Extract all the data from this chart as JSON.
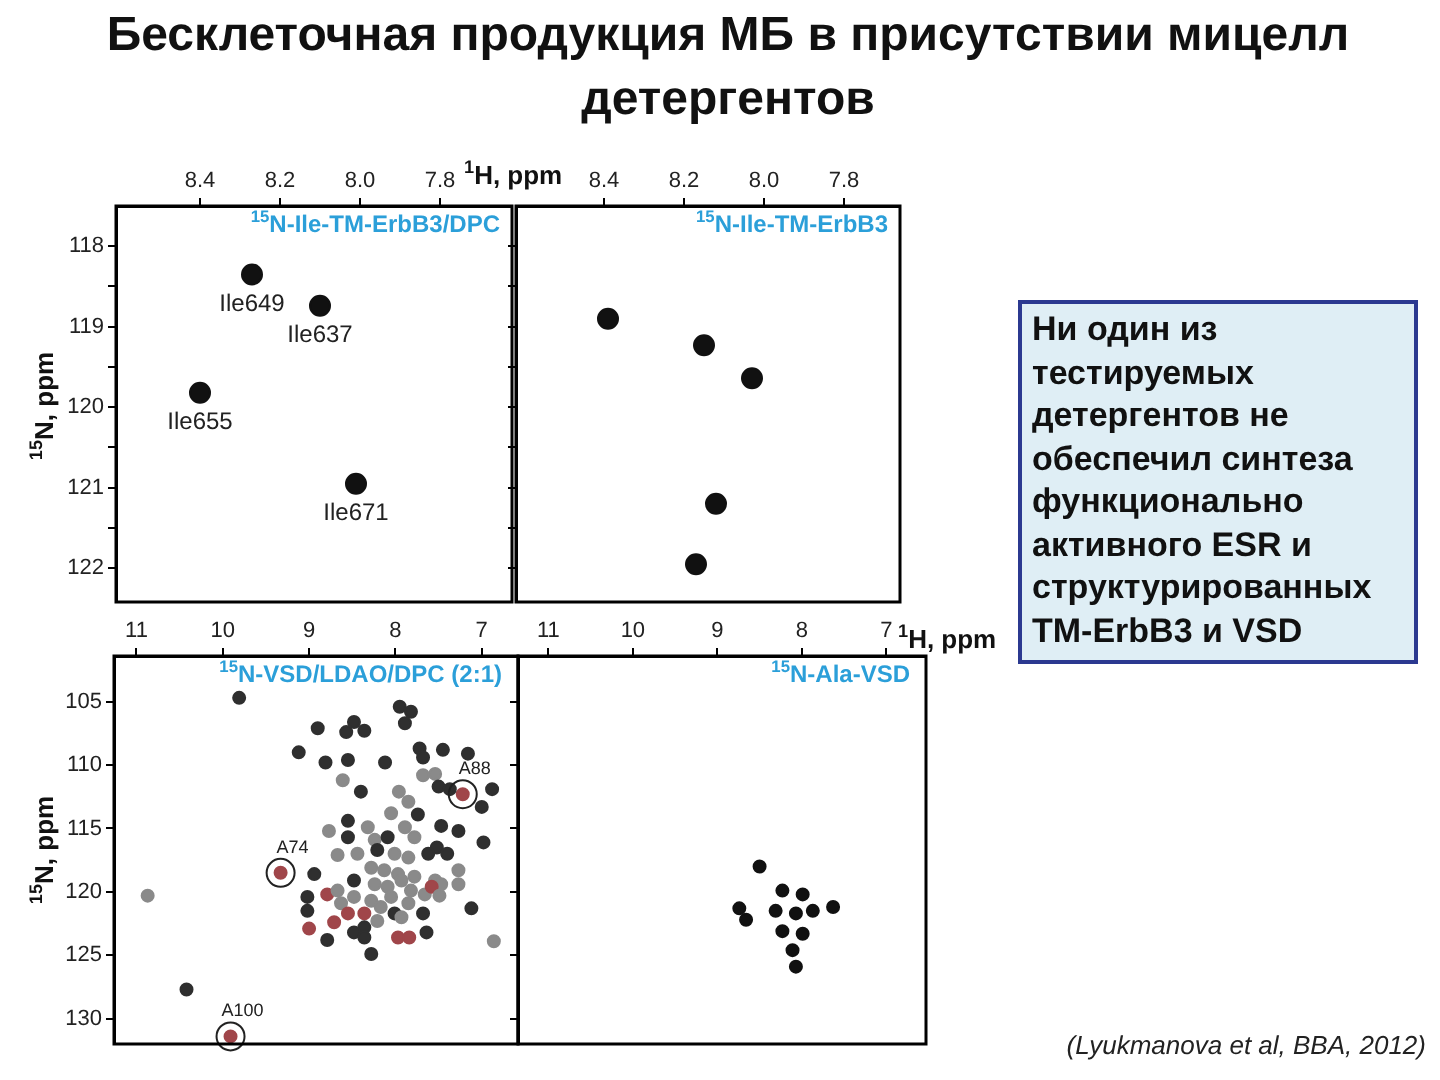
{
  "chart_data": [
    {
      "type": "other",
      "title": "Бесклеточная продукция МБ в присутствии мицелл детергентов"
    },
    {
      "type": "scatter",
      "title": "$^{15}$N-Ile-TM-ErbB3/DPC",
      "xlabel": "$^{1}$H, ppm",
      "ylabel": "$^{15}$N, ppm",
      "x": [
        8.27,
        8.1,
        8.4,
        8.01
      ],
      "values": [
        118.35,
        118.74,
        119.82,
        120.95
      ],
      "color": "#111111",
      "marker": "circle",
      "xlim": [
        8.61,
        7.62
      ],
      "xticks": [
        8.4,
        8.2,
        {
          "value": 8,
          "label": "8.0"
        },
        7.8
      ],
      "ylim": [
        122.42,
        117.5
      ],
      "yticks": [
        118,
        {
          "value": 118.5,
          "label": null
        },
        119,
        {
          "value": 119.5,
          "label": null
        },
        120,
        {
          "value": 120.5,
          "label": null
        },
        121,
        {
          "value": 121.5,
          "label": null
        },
        122
      ],
      "annotations": [
        {
          "text": "Ile649",
          "x": 8.27,
          "y": 118.35
        },
        {
          "text": "Ile637",
          "x": 8.1,
          "y": 118.74
        },
        {
          "text": "Ile655",
          "x": 8.4,
          "y": 119.82
        },
        {
          "text": "Ile671",
          "x": 8.01,
          "y": 120.95
        }
      ]
    },
    {
      "type": "scatter",
      "title": "$^{15}$N-Ile-TM-ErbB3",
      "x": [
        8.39,
        8.15,
        8.03,
        8.12,
        8.17
      ],
      "values": [
        118.9,
        119.23,
        119.64,
        121.2,
        121.95
      ],
      "color": "#111111",
      "marker": "circle",
      "xlim": [
        8.62,
        7.66
      ],
      "xticks": [
        8.4,
        8.2,
        {
          "value": 8,
          "label": "8.0"
        },
        7.8
      ],
      "ylim": [
        122.42,
        117.5
      ],
      "yticks": [
        118,
        {
          "value": 118.5,
          "label": null
        },
        119,
        {
          "value": 119.5,
          "label": null
        },
        120,
        {
          "value": 120.5,
          "label": null
        },
        121,
        {
          "value": 121.5,
          "label": null
        },
        122
      ],
      "tick_labels": "x"
    },
    {
      "type": "scatter",
      "title": "$^{15}$N-VSD/LDAO/DPC (2:1)",
      "ylabel": "$^{15}$N, ppm",
      "marker": "circle",
      "xlim": [
        11.26,
        6.58
      ],
      "xticks": [
        11,
        10,
        9,
        8,
        7
      ],
      "ylim": [
        132,
        101.4
      ],
      "yticks": [
        105,
        110,
        115,
        120,
        125,
        130
      ],
      "x": [
        10.87,
        9.81,
        10.42,
        9.91,
        9.33,
        7.22,
        8.9,
        8.57,
        8.48,
        7.95,
        7.82,
        7.89,
        8.36,
        9.12,
        8.81,
        8.55,
        8.12,
        7.72,
        7.68,
        7.45,
        7.16,
        7.54,
        7.68,
        7.5,
        7.37,
        6.88,
        7.0,
        8.61,
        8.4,
        7.96,
        7.85,
        8.05,
        7.74,
        7.89,
        8.77,
        8.55,
        8.32,
        7.47,
        7.27,
        8.55,
        8.24,
        8.09,
        7.78,
        7.52,
        6.98,
        8.67,
        8.44,
        8.21,
        8.01,
        7.85,
        7.62,
        7.4,
        8.94,
        8.28,
        8.13,
        7.97,
        7.78,
        7.54,
        7.27,
        8.48,
        8.24,
        8.09,
        7.93,
        7.82,
        7.66,
        7.47,
        7.27,
        9.02,
        8.79,
        8.67,
        8.48,
        8.28,
        8.05,
        7.85,
        7.58,
        9.02,
        8.63,
        8.55,
        8.36,
        8.17,
        8.01,
        7.68,
        7.12,
        7.49,
        8.71,
        8.36,
        8.21,
        7.93,
        9.0,
        8.79,
        8.48,
        8.36,
        7.97,
        7.84,
        7.64,
        8.28,
        6.86
      ],
      "values": [
        120.3,
        104.7,
        127.7,
        131.4,
        118.5,
        112.3,
        107.1,
        107.4,
        106.6,
        105.4,
        105.8,
        106.7,
        107.3,
        109.0,
        109.8,
        109.6,
        109.8,
        108.7,
        109.4,
        108.8,
        109.1,
        110.7,
        110.8,
        111.7,
        111.9,
        111.9,
        113.3,
        111.2,
        112.1,
        112.1,
        112.9,
        113.8,
        113.9,
        114.9,
        115.2,
        114.4,
        114.9,
        114.8,
        115.2,
        115.7,
        115.9,
        115.7,
        115.7,
        116.5,
        116.1,
        117.1,
        117.0,
        116.7,
        117.0,
        117.3,
        117.0,
        117.0,
        118.6,
        118.1,
        118.3,
        118.6,
        118.8,
        119.1,
        118.3,
        119.1,
        119.4,
        119.6,
        119.1,
        119.9,
        120.2,
        119.4,
        119.4,
        120.4,
        120.2,
        119.9,
        120.4,
        120.7,
        120.4,
        120.9,
        119.6,
        121.5,
        120.9,
        121.7,
        121.7,
        121.2,
        121.7,
        121.7,
        121.3,
        120.3,
        122.4,
        122.8,
        122.3,
        122.0,
        122.9,
        123.8,
        123.2,
        123.6,
        123.6,
        123.6,
        123.2,
        124.9,
        123.9
      ],
      "colors": [
        "#8a8a8a",
        "#2f2f2f",
        "#2f2f2f",
        "#a0464a",
        "#a0464a",
        "#a0464a",
        "#2f2f2f",
        "#2f2f2f",
        "#2f2f2f",
        "#2f2f2f",
        "#2f2f2f",
        "#2f2f2f",
        "#2f2f2f",
        "#2f2f2f",
        "#2f2f2f",
        "#2f2f2f",
        "#2f2f2f",
        "#2f2f2f",
        "#2f2f2f",
        "#2f2f2f",
        "#2f2f2f",
        "#8a8a8a",
        "#8a8a8a",
        "#2f2f2f",
        "#2f2f2f",
        "#2f2f2f",
        "#2f2f2f",
        "#8a8a8a",
        "#2f2f2f",
        "#8a8a8a",
        "#8a8a8a",
        "#8a8a8a",
        "#2f2f2f",
        "#8a8a8a",
        "#8a8a8a",
        "#2f2f2f",
        "#8a8a8a",
        "#2f2f2f",
        "#2f2f2f",
        "#2f2f2f",
        "#8a8a8a",
        "#2f2f2f",
        "#8a8a8a",
        "#2f2f2f",
        "#2f2f2f",
        "#8a8a8a",
        "#8a8a8a",
        "#2f2f2f",
        "#8a8a8a",
        "#8a8a8a",
        "#2f2f2f",
        "#2f2f2f",
        "#2f2f2f",
        "#8a8a8a",
        "#8a8a8a",
        "#8a8a8a",
        "#8a8a8a",
        "#8a8a8a",
        "#8a8a8a",
        "#2f2f2f",
        "#8a8a8a",
        "#8a8a8a",
        "#8a8a8a",
        "#8a8a8a",
        "#8a8a8a",
        "#8a8a8a",
        "#8a8a8a",
        "#2f2f2f",
        "#a0464a",
        "#8a8a8a",
        "#8a8a8a",
        "#8a8a8a",
        "#8a8a8a",
        "#8a8a8a",
        "#a0464a",
        "#2f2f2f",
        "#8a8a8a",
        "#a0464a",
        "#a0464a",
        "#8a8a8a",
        "#2f2f2f",
        "#2f2f2f",
        "#2f2f2f",
        "#8a8a8a",
        "#a0464a",
        "#2f2f2f",
        "#8a8a8a",
        "#8a8a8a",
        "#a0464a",
        "#2f2f2f",
        "#2f2f2f",
        "#2f2f2f",
        "#a0464a",
        "#a0464a",
        "#2f2f2f",
        "#2f2f2f",
        "#8a8a8a"
      ],
      "annotations": [
        {
          "text": "A88",
          "x": 7.22,
          "y": 112.3
        },
        {
          "text": "A74",
          "x": 9.33,
          "y": 118.5
        },
        {
          "text": "A100",
          "x": 9.91,
          "y": 131.4
        }
      ]
    },
    {
      "type": "scatter",
      "title": "$^{15}$N-Ala-VSD",
      "xlabel": "$^{1}$H, ppm",
      "x": [
        8.5,
        8.23,
        7.99,
        8.31,
        8.07,
        7.87,
        8.23,
        7.99,
        8.11,
        8.66,
        8.74,
        7.63,
        8.07
      ],
      "values": [
        118,
        119.9,
        120.2,
        121.5,
        121.7,
        121.5,
        123.1,
        123.3,
        124.6,
        122.2,
        121.3,
        121.2,
        125.9
      ],
      "color": "#111111",
      "marker": "circle",
      "xlim": [
        11.36,
        6.53
      ],
      "xticks": [
        11,
        10,
        9,
        8,
        7
      ],
      "ylim": [
        132,
        101.4
      ],
      "yticks": [
        105,
        110,
        115,
        120,
        125,
        130
      ],
      "tick_labels": "x"
    },
    {
      "type": "other",
      "annotations": [
        "Ни один из тестируемых детергентов не обеспечил синтеза функционально активного ESR и структурированных TM-ErbB3 и VSD",
        "(Lyukmanova et al, BBA, 2012)"
      ]
    }
  ]
}
